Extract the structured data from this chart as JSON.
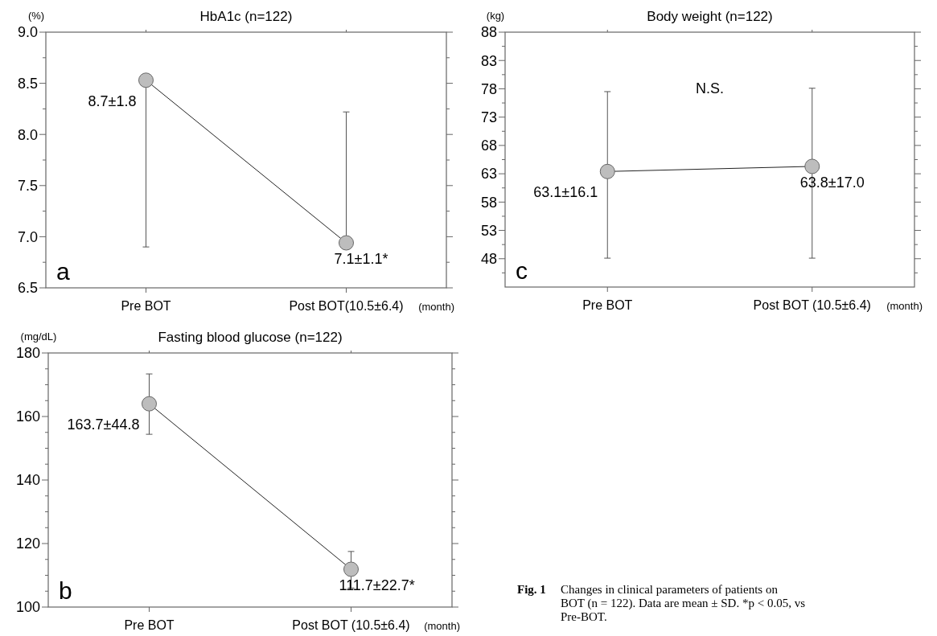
{
  "chart_data": [
    {
      "type": "line",
      "title": "HbA1c (n=122)",
      "ylabel": "(%)",
      "xlabel": "(month)",
      "categories": [
        "Pre BOT",
        "Post BOT(10.5±6.4)"
      ],
      "series": [
        {
          "color": "#222222",
          "values": [
            8.53,
            6.94
          ],
          "errors": [
            [
              6.9,
              8.53
            ],
            [
              6.94,
              8.22
            ]
          ]
        }
      ],
      "marker": "circle",
      "ylim": [
        6.5,
        9.0
      ],
      "yticks": [
        {
          "value": 6.5,
          "label": "6.5"
        },
        {
          "value": 6.75,
          "label": null
        },
        {
          "value": 7.0,
          "label": "7.0"
        },
        {
          "value": 7.25,
          "label": null
        },
        {
          "value": 7.5,
          "label": "7.5"
        },
        {
          "value": 7.75,
          "label": null
        },
        {
          "value": 8.0,
          "label": "8.0"
        },
        {
          "value": 8.25,
          "label": null
        },
        {
          "value": 8.5,
          "label": "8.5"
        },
        {
          "value": 8.75,
          "label": null
        },
        {
          "value": 9.0,
          "label": "9.0"
        }
      ],
      "annotations": [
        "a",
        "8.7±1.8",
        "7.1±1.1*"
      ]
    },
    {
      "type": "line",
      "title": "Body weight (n=122)",
      "ylabel": "(kg)",
      "xlabel": "(month)",
      "categories": [
        "Pre BOT",
        "Post BOT (10.5±6.4)"
      ],
      "series": [
        {
          "color": "#222222",
          "values": [
            63.4,
            64.3
          ],
          "errors": [
            [
              48.1,
              77.5
            ],
            [
              48.1,
              78.1
            ]
          ]
        }
      ],
      "marker": "circle",
      "ylim": [
        43,
        88
      ],
      "yticks": [
        {
          "value": 45.5,
          "label": null
        },
        48,
        {
          "value": 50.5,
          "label": null
        },
        53,
        {
          "value": 55.5,
          "label": null
        },
        58,
        {
          "value": 60.5,
          "label": null
        },
        63,
        {
          "value": 65.5,
          "label": null
        },
        68,
        {
          "value": 70.5,
          "label": null
        },
        73,
        {
          "value": 75.5,
          "label": null
        },
        78,
        {
          "value": 80.5,
          "label": null
        },
        83,
        {
          "value": 85.5,
          "label": null
        },
        88
      ],
      "annotations": [
        "c",
        "N.S.",
        "63.1±16.1",
        "63.8±17.0"
      ]
    },
    {
      "type": "line",
      "title": "Fasting blood glucose (n=122)",
      "ylabel": "(mg/dL)",
      "xlabel": "(month)",
      "categories": [
        "Pre BOT",
        "Post BOT (10.5±6.4)"
      ],
      "series": [
        {
          "color": "#222222",
          "values": [
            164.0,
            111.9
          ],
          "errors": [
            [
              154.4,
              173.4
            ],
            [
              106.0,
              117.5
            ]
          ]
        }
      ],
      "marker": "circle",
      "ylim": [
        100,
        180
      ],
      "yticks": [
        100,
        {
          "value": 105,
          "label": null
        },
        {
          "value": 110,
          "label": null
        },
        {
          "value": 115,
          "label": null
        },
        120,
        {
          "value": 125,
          "label": null
        },
        {
          "value": 130,
          "label": null
        },
        {
          "value": 135,
          "label": null
        },
        140,
        {
          "value": 145,
          "label": null
        },
        {
          "value": 150,
          "label": null
        },
        {
          "value": 155,
          "label": null
        },
        160,
        {
          "value": 165,
          "label": null
        },
        {
          "value": 170,
          "label": null
        },
        {
          "value": 175,
          "label": null
        },
        180
      ],
      "annotations": [
        "b",
        "163.7±44.8",
        "111.7±22.7*"
      ]
    },
    {
      "type": "other",
      "annotations": [
        "Fig. 1",
        "Changes in clinical parameters of patients on BOT (n = 122). Data are mean ± SD. *p < 0.05, vs Pre-BOT."
      ]
    }
  ]
}
